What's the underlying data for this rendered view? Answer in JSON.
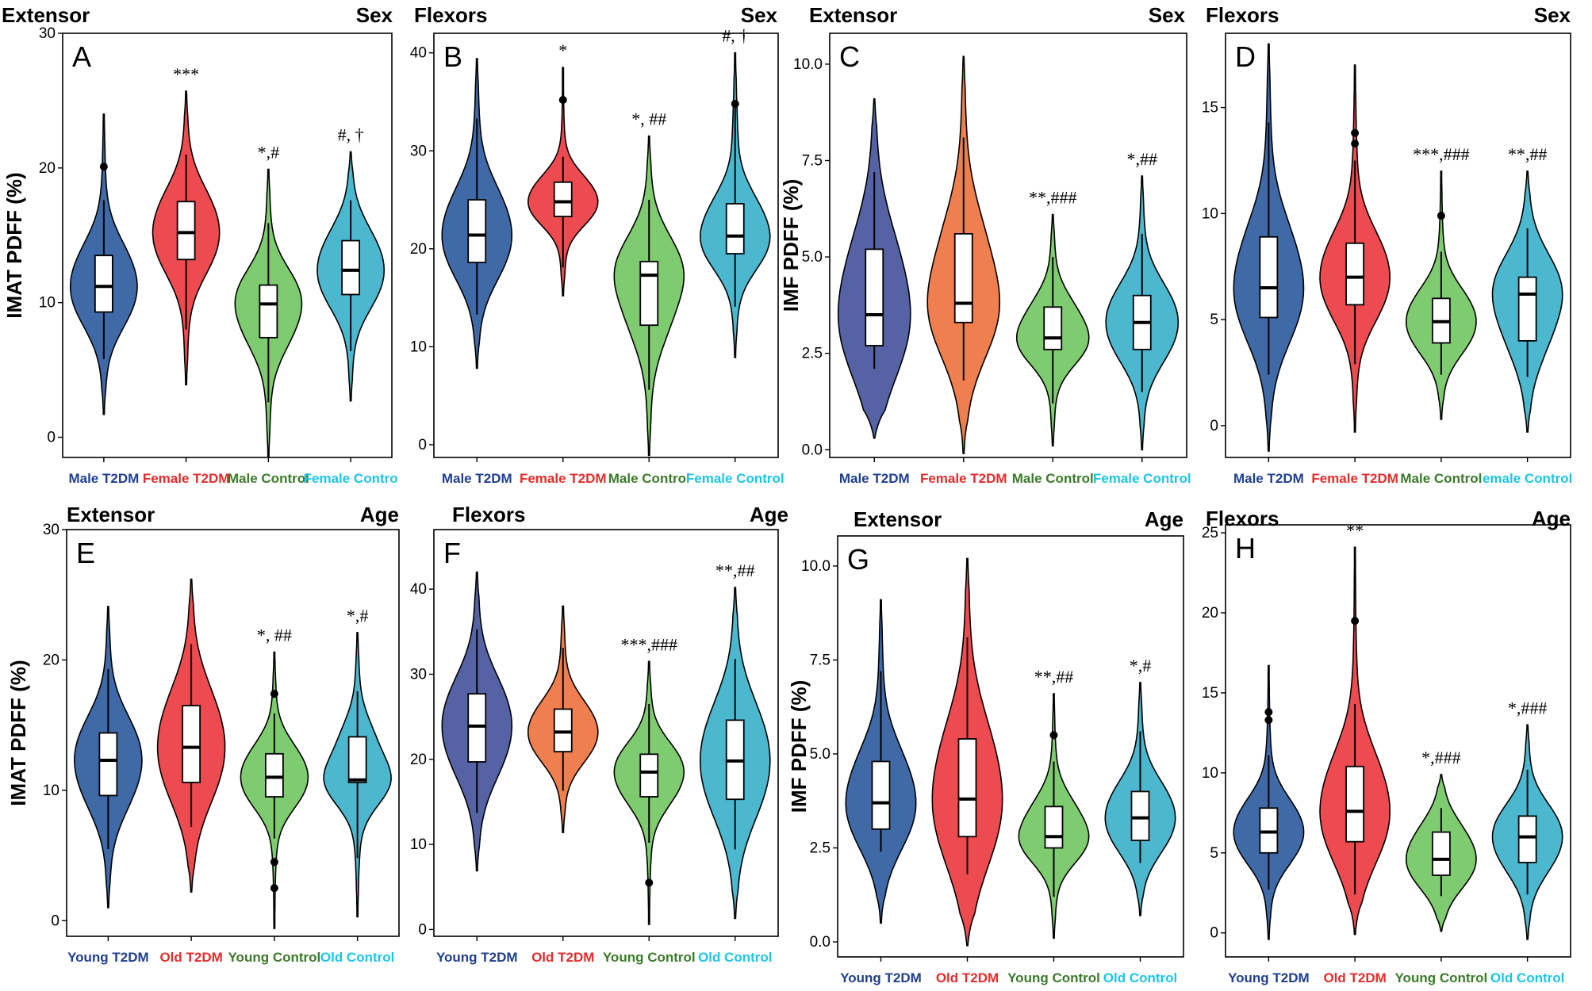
{
  "colors": {
    "blue": "#3f6aa7",
    "red": "#ee4b50",
    "green": "#7fcb6f",
    "cyan": "#4cb8cf",
    "navy": "#5563a5",
    "orange": "#ef7f4f",
    "label_blue": "#1f3f8f",
    "label_red": "#e52c2c",
    "label_green": "#3b7a2a",
    "label_cyan": "#1cc6e6"
  },
  "chart_data": [
    {
      "panel": "A",
      "type": "violin",
      "muscle": "Extensor",
      "grouping": "Sex",
      "ylabel": "IMAT PDFF (%)",
      "ylim": [
        -1.5,
        30
      ],
      "yticks": [
        0,
        10,
        20,
        30
      ],
      "categories": [
        "Male T2DM",
        "Female T2DM",
        "Male Control",
        "Female Contro"
      ],
      "category_colors": [
        "label_blue",
        "label_red",
        "label_green",
        "label_cyan"
      ],
      "fill": [
        "blue",
        "red",
        "green",
        "cyan"
      ],
      "series": [
        {
          "min": 1.7,
          "max": 24.0,
          "q1": 9.3,
          "median": 11.2,
          "q3": 13.5,
          "wlo": 5.8,
          "whi": 17.6,
          "outliers": [
            20.1
          ],
          "annotation": ""
        },
        {
          "min": 3.9,
          "max": 25.7,
          "q1": 13.2,
          "median": 15.2,
          "q3": 17.5,
          "wlo": 8.0,
          "whi": 21.0,
          "outliers": [],
          "annotation": "***"
        },
        {
          "min": -1.5,
          "max": 19.9,
          "q1": 7.4,
          "median": 9.9,
          "q3": 11.3,
          "wlo": 2.6,
          "whi": 15.9,
          "outliers": [],
          "annotation": "*,#"
        },
        {
          "min": 2.7,
          "max": 21.2,
          "q1": 10.6,
          "median": 12.4,
          "q3": 14.6,
          "wlo": 6.4,
          "whi": 17.6,
          "outliers": [],
          "annotation": "#, †"
        }
      ]
    },
    {
      "panel": "B",
      "type": "violin",
      "muscle": "Flexors",
      "grouping": "Sex",
      "ylabel": "",
      "ylim": [
        -1.3,
        42
      ],
      "yticks": [
        0,
        10,
        20,
        30,
        40
      ],
      "categories": [
        "Male T2DM",
        "Female T2DM",
        "Male Control",
        "Female Control"
      ],
      "category_colors": [
        "label_blue",
        "label_red",
        "label_green",
        "label_cyan"
      ],
      "fill": [
        "blue",
        "red",
        "green",
        "cyan"
      ],
      "series": [
        {
          "min": 7.8,
          "max": 39.4,
          "q1": 18.6,
          "median": 21.4,
          "q3": 25.0,
          "wlo": 13.3,
          "whi": 33.3,
          "outliers": [],
          "annotation": ""
        },
        {
          "min": 15.2,
          "max": 38.5,
          "q1": 23.3,
          "median": 24.8,
          "q3": 26.8,
          "wlo": 18.1,
          "whi": 29.4,
          "outliers": [
            35.2
          ],
          "annotation": "*"
        },
        {
          "min": -1.1,
          "max": 31.5,
          "q1": 12.2,
          "median": 17.3,
          "q3": 18.7,
          "wlo": 5.6,
          "whi": 25.0,
          "outliers": [],
          "annotation": "*, ##"
        },
        {
          "min": 8.9,
          "max": 40.0,
          "q1": 19.5,
          "median": 21.3,
          "q3": 24.6,
          "wlo": 14.1,
          "whi": 35.0,
          "outliers": [
            34.8
          ],
          "annotation": "#, †"
        }
      ]
    },
    {
      "panel": "C",
      "type": "violin",
      "muscle": "Extensor",
      "grouping": "Sex",
      "ylabel": "IMF PDFF (%)",
      "ylim": [
        -0.2,
        10.8
      ],
      "yticks": [
        0.0,
        2.5,
        5.0,
        7.5,
        10.0
      ],
      "ytick_labels": [
        "0.0",
        "2.5",
        "5.0",
        "7.5",
        "10.0"
      ],
      "categories": [
        "Male T2DM",
        "Female T2DM",
        "Male Control",
        "Female Control"
      ],
      "category_colors": [
        "label_blue",
        "label_red",
        "label_green",
        "label_cyan"
      ],
      "fill": [
        "navy",
        "orange",
        "green",
        "cyan"
      ],
      "series": [
        {
          "min": 0.3,
          "max": 9.1,
          "q1": 2.7,
          "median": 3.5,
          "q3": 5.2,
          "wlo": 2.1,
          "whi": 7.2,
          "outliers": [],
          "annotation": ""
        },
        {
          "min": -0.1,
          "max": 10.2,
          "q1": 3.3,
          "median": 3.8,
          "q3": 5.6,
          "wlo": 1.8,
          "whi": 8.1,
          "outliers": [],
          "annotation": ""
        },
        {
          "min": 0.1,
          "max": 6.1,
          "q1": 2.6,
          "median": 2.9,
          "q3": 3.7,
          "wlo": 1.2,
          "whi": 5.0,
          "outliers": [],
          "annotation": "**,###"
        },
        {
          "min": 0.0,
          "max": 7.1,
          "q1": 2.6,
          "median": 3.3,
          "q3": 4.0,
          "wlo": 1.5,
          "whi": 5.6,
          "outliers": [],
          "annotation": "*,##"
        }
      ]
    },
    {
      "panel": "D",
      "type": "violin",
      "muscle": "Flexors",
      "grouping": "Sex",
      "ylabel": "",
      "ylim": [
        -1.5,
        18.5
      ],
      "yticks": [
        0,
        5,
        10,
        15
      ],
      "categories": [
        "Male T2DM",
        "Female T2DM",
        "Male Control",
        "emale Control"
      ],
      "category_colors": [
        "label_blue",
        "label_red",
        "label_green",
        "label_cyan"
      ],
      "fill": [
        "blue",
        "red",
        "green",
        "cyan"
      ],
      "series": [
        {
          "min": -1.2,
          "max": 18.0,
          "q1": 5.1,
          "median": 6.5,
          "q3": 8.9,
          "wlo": 2.4,
          "whi": 14.3,
          "outliers": [],
          "annotation": ""
        },
        {
          "min": -0.3,
          "max": 17.0,
          "q1": 5.7,
          "median": 7.0,
          "q3": 8.6,
          "wlo": 2.9,
          "whi": 12.5,
          "outliers": [
            13.8,
            13.3
          ],
          "annotation": ""
        },
        {
          "min": 0.3,
          "max": 12.0,
          "q1": 3.9,
          "median": 4.9,
          "q3": 6.0,
          "wlo": 2.4,
          "whi": 8.2,
          "outliers": [
            9.9
          ],
          "annotation": "***,###"
        },
        {
          "min": -0.3,
          "max": 12.0,
          "q1": 4.0,
          "median": 6.2,
          "q3": 7.0,
          "wlo": 2.3,
          "whi": 9.3,
          "outliers": [],
          "annotation": "**,##"
        }
      ]
    },
    {
      "panel": "E",
      "type": "violin",
      "muscle": "Extensor",
      "grouping": "Age",
      "ylabel": "IMAT PDFF (%)",
      "ylim": [
        -1.2,
        30
      ],
      "yticks": [
        0,
        10,
        20,
        30
      ],
      "categories": [
        "Young T2DM",
        "Old T2DM",
        "Young Control",
        "Old Control"
      ],
      "category_colors": [
        "label_blue",
        "label_red",
        "label_green",
        "label_cyan"
      ],
      "fill": [
        "blue",
        "red",
        "green",
        "cyan"
      ],
      "series": [
        {
          "min": 1.0,
          "max": 24.1,
          "q1": 9.6,
          "median": 12.3,
          "q3": 14.4,
          "wlo": 5.5,
          "whi": 19.3,
          "outliers": [],
          "annotation": ""
        },
        {
          "min": 2.2,
          "max": 26.2,
          "q1": 10.6,
          "median": 13.3,
          "q3": 16.5,
          "wlo": 7.2,
          "whi": 21.2,
          "outliers": [],
          "annotation": ""
        },
        {
          "min": -0.6,
          "max": 20.6,
          "q1": 9.5,
          "median": 11.0,
          "q3": 12.8,
          "wlo": 6.3,
          "whi": 15.9,
          "outliers": [
            17.4,
            4.5,
            2.5
          ],
          "annotation": "*, ##"
        },
        {
          "min": 0.3,
          "max": 22.1,
          "q1": 10.6,
          "median": 10.8,
          "q3": 14.1,
          "wlo": 4.8,
          "whi": 17.6,
          "outliers": [],
          "annotation": "*,#"
        }
      ]
    },
    {
      "panel": "F",
      "type": "violin",
      "muscle": "Flexors",
      "grouping": "Age",
      "ylabel": "",
      "ylim": [
        -0.8,
        47
      ],
      "yticks": [
        0,
        10,
        20,
        30,
        40
      ],
      "categories": [
        "Young T2DM",
        "Old T2DM",
        "Young Control",
        "Old Control"
      ],
      "category_colors": [
        "label_blue",
        "label_red",
        "label_green",
        "label_cyan"
      ],
      "fill": [
        "navy",
        "orange",
        "green",
        "cyan"
      ],
      "series": [
        {
          "min": 6.9,
          "max": 42.0,
          "q1": 19.7,
          "median": 23.9,
          "q3": 27.7,
          "wlo": 13.7,
          "whi": 35.3,
          "outliers": [],
          "annotation": ""
        },
        {
          "min": 11.4,
          "max": 38.0,
          "q1": 20.9,
          "median": 23.2,
          "q3": 25.9,
          "wlo": 16.3,
          "whi": 33.1,
          "outliers": [],
          "annotation": ""
        },
        {
          "min": 0.6,
          "max": 31.5,
          "q1": 15.6,
          "median": 18.5,
          "q3": 20.6,
          "wlo": 10.2,
          "whi": 26.5,
          "outliers": [
            5.5
          ],
          "annotation": "***,###"
        },
        {
          "min": 1.3,
          "max": 40.2,
          "q1": 15.3,
          "median": 19.8,
          "q3": 24.6,
          "wlo": 9.4,
          "whi": 31.8,
          "outliers": [],
          "annotation": "**,##"
        }
      ]
    },
    {
      "panel": "G",
      "type": "violin",
      "muscle": "Extensor",
      "grouping": "Age",
      "ylabel": "IMF PDFF (%)",
      "ylim": [
        -0.4,
        10.8
      ],
      "yticks": [
        0.0,
        2.5,
        5.0,
        7.5,
        10.0
      ],
      "ytick_labels": [
        "0.0",
        "2.5",
        "5.0",
        "7.5",
        "10.0"
      ],
      "categories": [
        "Young T2DM",
        "Old T2DM",
        "Young Control",
        "Old Control"
      ],
      "category_colors": [
        "label_blue",
        "label_red",
        "label_green",
        "label_cyan"
      ],
      "fill": [
        "blue",
        "red",
        "green",
        "cyan"
      ],
      "series": [
        {
          "min": 0.5,
          "max": 9.1,
          "q1": 3.0,
          "median": 3.7,
          "q3": 4.8,
          "wlo": 2.4,
          "whi": 7.2,
          "outliers": [],
          "annotation": ""
        },
        {
          "min": -0.1,
          "max": 10.2,
          "q1": 2.8,
          "median": 3.8,
          "q3": 5.4,
          "wlo": 1.8,
          "whi": 8.1,
          "outliers": [],
          "annotation": ""
        },
        {
          "min": 0.1,
          "max": 6.6,
          "q1": 2.5,
          "median": 2.8,
          "q3": 3.6,
          "wlo": 1.2,
          "whi": 4.8,
          "outliers": [
            5.5
          ],
          "annotation": "**,##"
        },
        {
          "min": 0.7,
          "max": 6.9,
          "q1": 2.7,
          "median": 3.3,
          "q3": 4.0,
          "wlo": 2.1,
          "whi": 5.6,
          "outliers": [],
          "annotation": "*,#"
        }
      ]
    },
    {
      "panel": "H",
      "type": "violin",
      "muscle": "Flexors",
      "grouping": "Age",
      "ylabel": "",
      "ylim": [
        -1.5,
        25.5
      ],
      "yticks": [
        0,
        5,
        10,
        15,
        20,
        25
      ],
      "categories": [
        "Young T2DM",
        "Old T2DM",
        "Young Control",
        "Old Control"
      ],
      "category_colors": [
        "label_blue",
        "label_red",
        "label_green",
        "label_cyan"
      ],
      "fill": [
        "blue",
        "red",
        "green",
        "cyan"
      ],
      "series": [
        {
          "min": -0.4,
          "max": 16.7,
          "q1": 5.0,
          "median": 6.3,
          "q3": 7.8,
          "wlo": 2.7,
          "whi": 11.1,
          "outliers": [
            13.8,
            13.3
          ],
          "annotation": ""
        },
        {
          "min": -0.1,
          "max": 24.1,
          "q1": 5.7,
          "median": 7.6,
          "q3": 10.4,
          "wlo": 2.4,
          "whi": 14.3,
          "outliers": [
            19.5
          ],
          "annotation": "**"
        },
        {
          "min": 0.1,
          "max": 9.9,
          "q1": 3.6,
          "median": 4.6,
          "q3": 6.3,
          "wlo": 2.3,
          "whi": 7.8,
          "outliers": [],
          "annotation": "*,###"
        },
        {
          "min": -0.4,
          "max": 13.0,
          "q1": 4.4,
          "median": 6.0,
          "q3": 7.3,
          "wlo": 2.4,
          "whi": 10.2,
          "outliers": [],
          "annotation": "*,###"
        }
      ]
    }
  ]
}
